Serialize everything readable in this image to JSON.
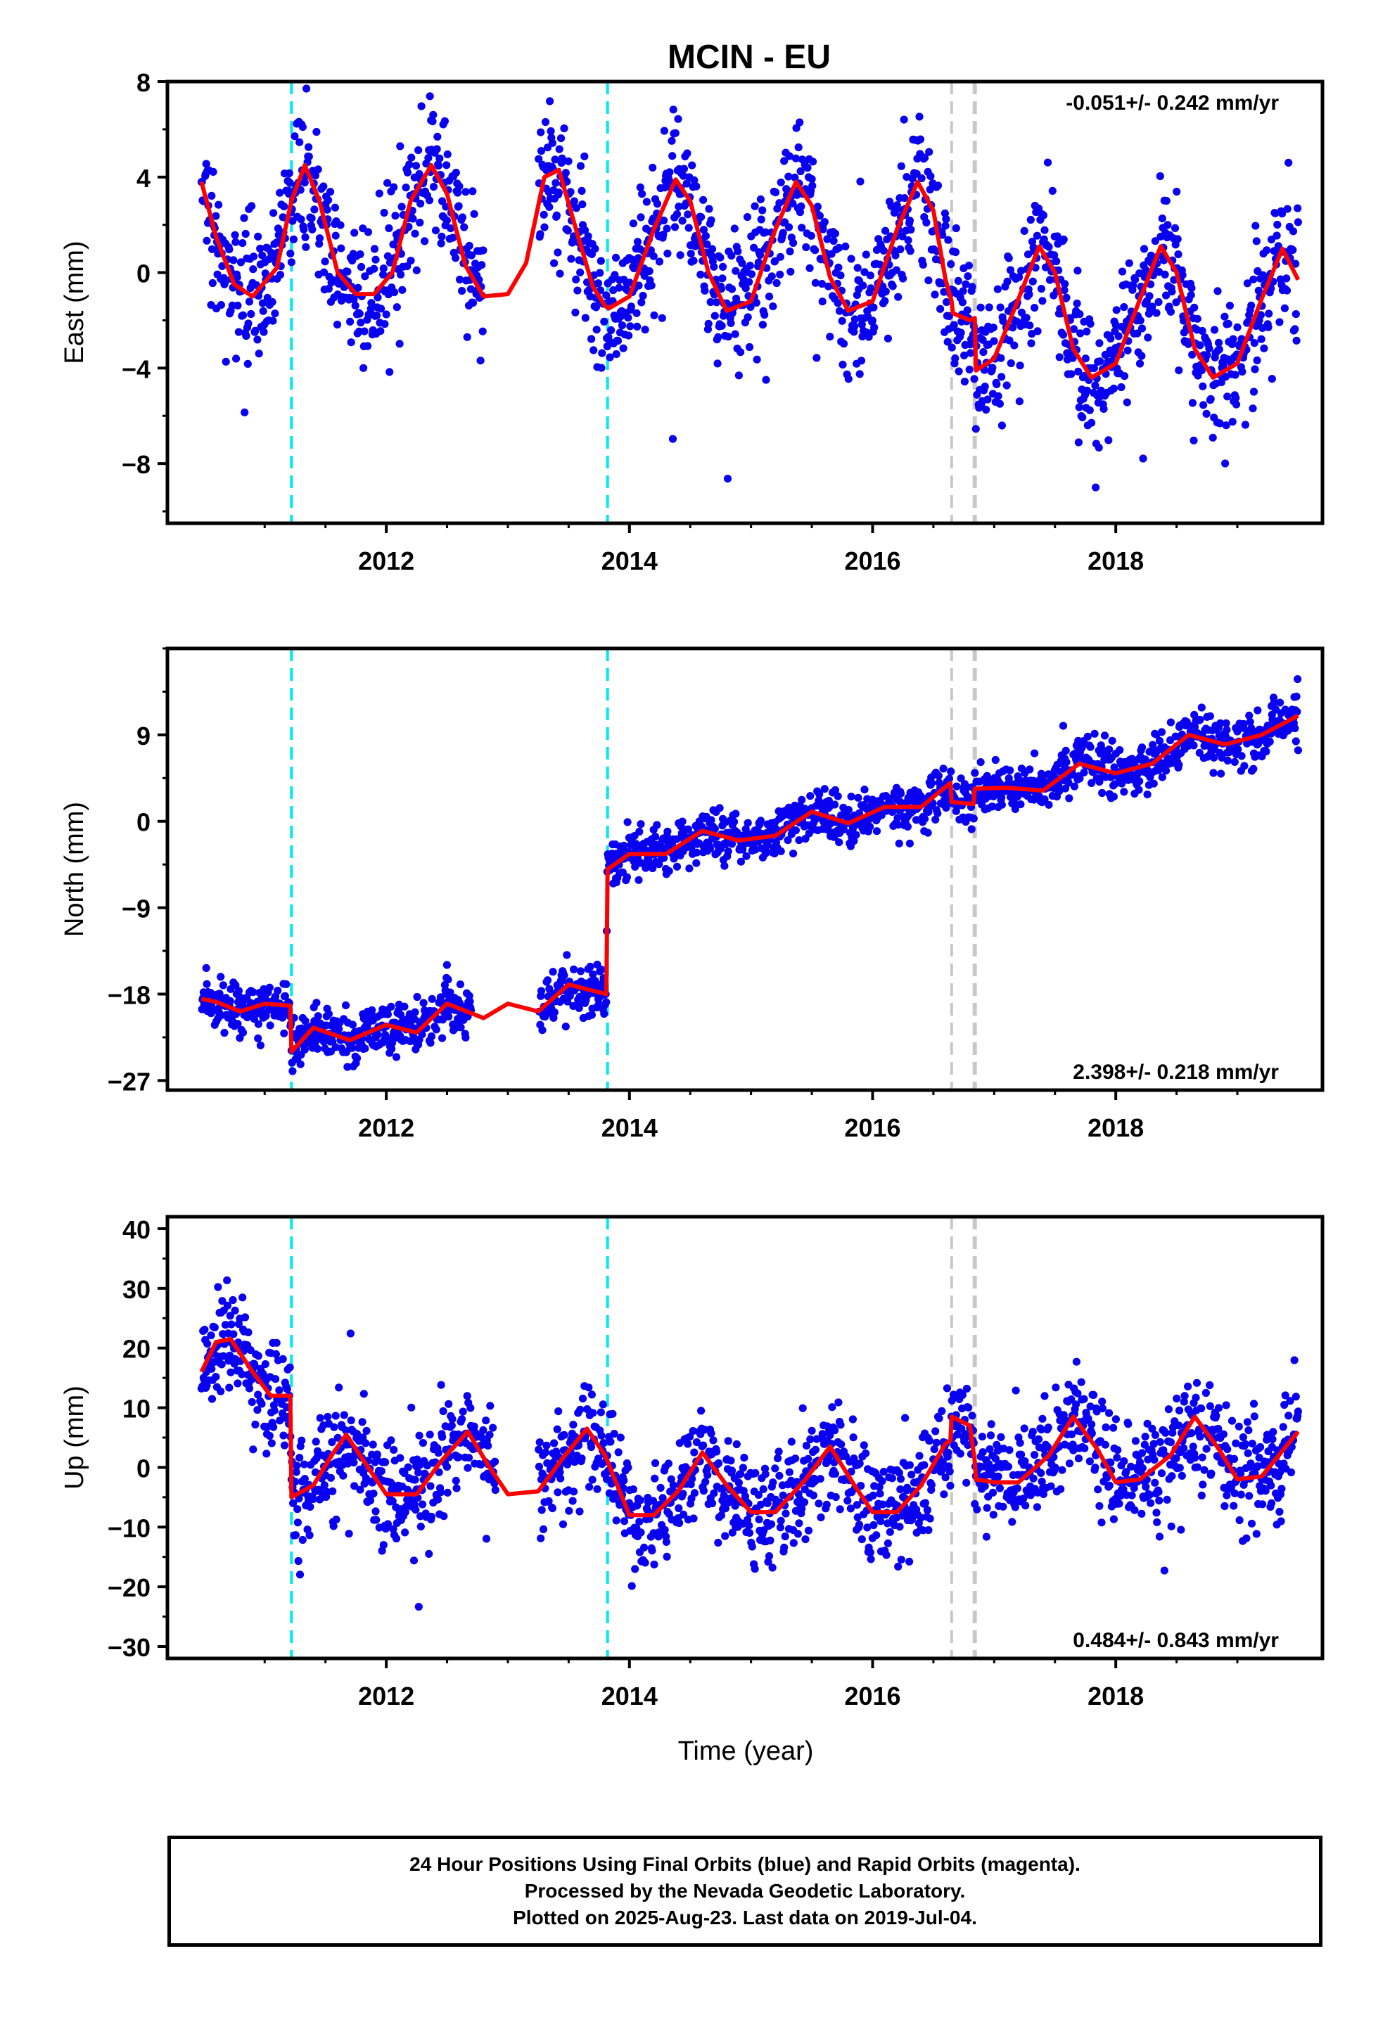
{
  "figure": {
    "title": "MCIN - EU",
    "xlabel": "Time (year)",
    "footer": [
      "24 Hour Positions Using Final Orbits (blue) and Rapid Orbits (magenta).",
      "Processed by the Nevada Geodetic Laboratory.",
      "Plotted on 2025-Aug-23. Last data on 2019-Jul-04."
    ]
  },
  "colors": {
    "points": "#0a00f0",
    "model": "#ff0000",
    "equipment_change": "#00e8f0",
    "earthquake": "#c8c8c8"
  },
  "chart_data": [
    {
      "type": "scatter",
      "name": "east",
      "ylabel": "East (mm)",
      "rate": "-0.051+/- 0.242 mm/yr",
      "rate_position": "top-right",
      "xlim": [
        2010.2,
        2019.7
      ],
      "ylim": [
        -10.5,
        8
      ],
      "yticks": [
        -8,
        -4,
        0,
        4,
        8
      ],
      "xticks": [
        2012,
        2014,
        2016,
        2018
      ],
      "offsets_equipment": [
        2011.22,
        2013.82
      ],
      "offsets_other": [
        2016.65,
        2016.84
      ],
      "data_range": [
        2010.48,
        2019.5
      ],
      "gap": [
        2012.8,
        2013.25
      ],
      "noise": 1.45,
      "model": {
        "x": [
          2010.48,
          2010.6,
          2010.75,
          2010.9,
          2011.1,
          2011.22,
          2011.33,
          2011.45,
          2011.6,
          2011.75,
          2011.9,
          2012.05,
          2012.2,
          2012.37,
          2012.5,
          2012.65,
          2012.8,
          2013.0,
          2013.15,
          2013.3,
          2013.42,
          2013.55,
          2013.7,
          2013.8,
          2013.83,
          2014.0,
          2014.2,
          2014.38,
          2014.5,
          2014.65,
          2014.8,
          2015.0,
          2015.2,
          2015.37,
          2015.5,
          2015.65,
          2015.8,
          2016.0,
          2016.2,
          2016.37,
          2016.5,
          2016.6,
          2016.65,
          2016.66,
          2016.8,
          2016.84,
          2016.85,
          2017.0,
          2017.2,
          2017.37,
          2017.5,
          2017.65,
          2017.8,
          2018.0,
          2018.2,
          2018.37,
          2018.5,
          2018.65,
          2018.8,
          2019.0,
          2019.2,
          2019.37,
          2019.5
        ],
        "y": [
          3.8,
          1.5,
          -0.5,
          -1.0,
          0.2,
          3.0,
          4.5,
          3.0,
          0.0,
          -0.9,
          -0.9,
          0.0,
          3.0,
          4.5,
          3.3,
          0.3,
          -1.0,
          -0.9,
          0.4,
          4.0,
          4.3,
          2.0,
          -0.6,
          -1.4,
          -1.5,
          -1.0,
          1.8,
          3.9,
          3.0,
          0.0,
          -1.6,
          -1.2,
          1.8,
          3.8,
          2.8,
          -0.2,
          -1.6,
          -1.2,
          1.8,
          3.8,
          2.6,
          -0.3,
          -1.2,
          -1.7,
          -2.0,
          -1.9,
          -4.1,
          -3.6,
          -1.1,
          1.1,
          0.0,
          -3.2,
          -4.4,
          -3.8,
          -1.1,
          1.1,
          0.0,
          -3.2,
          -4.4,
          -3.8,
          -1.1,
          1.0,
          -0.3
        ]
      }
    },
    {
      "type": "scatter",
      "name": "north",
      "ylabel": "North (mm)",
      "rate": "2.398+/- 0.218 mm/yr",
      "rate_position": "bottom-right",
      "xlim": [
        2010.2,
        2019.7
      ],
      "ylim": [
        -28,
        18
      ],
      "yticks": [
        -27,
        -18,
        -9,
        0,
        9
      ],
      "xticks": [
        2012,
        2014,
        2016,
        2018
      ],
      "offsets_equipment": [
        2011.22,
        2013.82
      ],
      "offsets_other": [
        2016.65,
        2016.84
      ],
      "data_range": [
        2010.48,
        2019.5
      ],
      "gap": [
        2012.7,
        2013.25
      ],
      "noise": 1.3,
      "model": {
        "x": [
          2010.48,
          2010.6,
          2010.8,
          2011.0,
          2011.21,
          2011.22,
          2011.4,
          2011.7,
          2012.0,
          2012.25,
          2012.5,
          2012.8,
          2013.0,
          2013.25,
          2013.5,
          2013.81,
          2013.82,
          2014.0,
          2014.3,
          2014.6,
          2014.9,
          2015.2,
          2015.5,
          2015.8,
          2016.1,
          2016.4,
          2016.64,
          2016.65,
          2016.83,
          2016.84,
          2017.1,
          2017.4,
          2017.7,
          2018.0,
          2018.3,
          2018.6,
          2018.9,
          2019.2,
          2019.5
        ],
        "y": [
          -18.5,
          -18.8,
          -19.8,
          -19.0,
          -19.2,
          -24.0,
          -21.5,
          -22.8,
          -21.2,
          -22.0,
          -19.0,
          -20.5,
          -19.0,
          -19.8,
          -17.0,
          -18.0,
          -5.0,
          -3.4,
          -3.4,
          -1.0,
          -2.0,
          -1.5,
          1.0,
          -0.2,
          1.5,
          1.5,
          4.0,
          2.0,
          1.8,
          3.4,
          3.5,
          3.2,
          6.0,
          5.0,
          6.0,
          9.0,
          8.0,
          9.0,
          11.0
        ]
      }
    },
    {
      "type": "scatter",
      "name": "up",
      "ylabel": "Up (mm)",
      "rate": "0.484+/- 0.843 mm/yr",
      "rate_position": "bottom-right",
      "xlim": [
        2010.2,
        2019.7
      ],
      "ylim": [
        -32,
        42
      ],
      "yticks": [
        -30,
        -20,
        -10,
        0,
        10,
        20,
        30,
        40
      ],
      "xticks": [
        2012,
        2014,
        2016,
        2018
      ],
      "offsets_equipment": [
        2011.22,
        2013.82
      ],
      "offsets_other": [
        2016.65,
        2016.84
      ],
      "data_range": [
        2010.48,
        2019.5
      ],
      "gap": [
        2012.9,
        2013.25
      ],
      "noise": 4.5,
      "model": {
        "x": [
          2010.48,
          2010.6,
          2010.72,
          2010.9,
          2011.05,
          2011.21,
          2011.22,
          2011.4,
          2011.55,
          2011.67,
          2011.85,
          2012.0,
          2012.25,
          2012.45,
          2012.67,
          2012.85,
          2013.0,
          2013.25,
          2013.45,
          2013.65,
          2013.8,
          2014.0,
          2014.2,
          2014.4,
          2014.6,
          2014.8,
          2015.0,
          2015.2,
          2015.45,
          2015.65,
          2015.85,
          2016.0,
          2016.2,
          2016.4,
          2016.6,
          2016.64,
          2016.65,
          2016.8,
          2016.84,
          2016.85,
          2017.0,
          2017.2,
          2017.45,
          2017.65,
          2017.85,
          2018.0,
          2018.2,
          2018.45,
          2018.65,
          2018.85,
          2019.0,
          2019.2,
          2019.5
        ],
        "y": [
          16.0,
          21.0,
          21.5,
          16.0,
          12.0,
          12.0,
          -5.0,
          -3.0,
          2.0,
          5.5,
          0.0,
          -4.5,
          -4.5,
          1.0,
          6.0,
          0.0,
          -4.5,
          -4.0,
          1.5,
          6.5,
          2.0,
          -8.0,
          -8.0,
          -4.0,
          2.5,
          -3.0,
          -7.5,
          -7.5,
          -2.0,
          3.5,
          -3.0,
          -7.5,
          -7.5,
          -3.0,
          4.0,
          4.5,
          8.5,
          7.0,
          1.0,
          -2.0,
          -2.5,
          -2.5,
          2.0,
          8.5,
          3.0,
          -2.5,
          -2.0,
          2.0,
          8.5,
          3.0,
          -2.0,
          -1.5,
          6.0
        ]
      }
    }
  ]
}
